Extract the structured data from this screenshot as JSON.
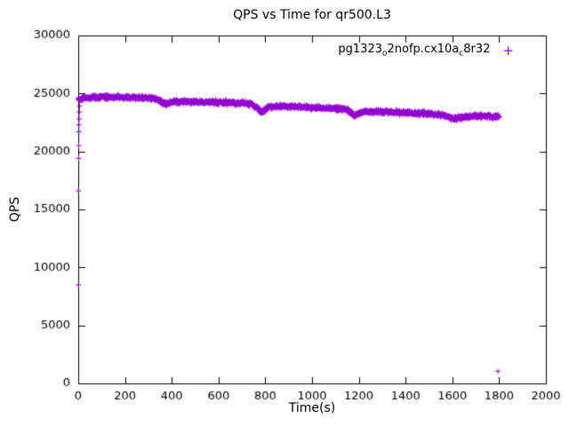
{
  "chart_data": {
    "type": "scatter",
    "title": "QPS vs Time for qr500.L3",
    "xlabel": "Time(s)",
    "ylabel": "QPS",
    "xlim": [
      0,
      2000
    ],
    "ylim": [
      0,
      30000
    ],
    "xticks": [
      0,
      200,
      400,
      600,
      800,
      1000,
      1200,
      1400,
      1600,
      1800,
      2000
    ],
    "yticks": [
      0,
      5000,
      10000,
      15000,
      20000,
      25000,
      30000
    ],
    "grid": false,
    "legend_position": "top-right-inside",
    "axis_color": "#000000",
    "series": [
      {
        "name": "pg1323_o2nofp.cx10a_c8r32",
        "label_parts": [
          {
            "text": "pg1323",
            "sub": false
          },
          {
            "text": "o",
            "sub": true
          },
          {
            "text": "2nofp.cx10a",
            "sub": false
          },
          {
            "text": "c",
            "sub": true
          },
          {
            "text": "8r32",
            "sub": false
          }
        ],
        "marker": "plus",
        "marker_glyph": "+",
        "color": "#9400D3",
        "band_noise": 180,
        "band_step": 1,
        "band_anchors": [
          [
            0,
            24500
          ],
          [
            20,
            24600
          ],
          [
            60,
            24650
          ],
          [
            120,
            24700
          ],
          [
            180,
            24650
          ],
          [
            240,
            24650
          ],
          [
            300,
            24600
          ],
          [
            340,
            24500
          ],
          [
            360,
            24150
          ],
          [
            375,
            24100
          ],
          [
            395,
            24250
          ],
          [
            420,
            24300
          ],
          [
            480,
            24300
          ],
          [
            540,
            24250
          ],
          [
            600,
            24250
          ],
          [
            660,
            24200
          ],
          [
            700,
            24150
          ],
          [
            740,
            24100
          ],
          [
            765,
            23800
          ],
          [
            780,
            23400
          ],
          [
            795,
            23500
          ],
          [
            815,
            23850
          ],
          [
            860,
            23900
          ],
          [
            920,
            23850
          ],
          [
            980,
            23800
          ],
          [
            1040,
            23750
          ],
          [
            1100,
            23700
          ],
          [
            1150,
            23650
          ],
          [
            1165,
            23350
          ],
          [
            1180,
            23050
          ],
          [
            1195,
            23200
          ],
          [
            1215,
            23400
          ],
          [
            1260,
            23450
          ],
          [
            1320,
            23400
          ],
          [
            1380,
            23350
          ],
          [
            1440,
            23300
          ],
          [
            1500,
            23250
          ],
          [
            1560,
            23150
          ],
          [
            1590,
            22900
          ],
          [
            1605,
            22750
          ],
          [
            1625,
            22900
          ],
          [
            1660,
            23000
          ],
          [
            1720,
            23050
          ],
          [
            1800,
            23000
          ]
        ],
        "startup_points": [
          [
            1,
            8500
          ],
          [
            1,
            16600
          ],
          [
            2,
            19400
          ],
          [
            2,
            20500
          ],
          [
            3,
            21700
          ],
          [
            3,
            22300
          ],
          [
            4,
            22800
          ],
          [
            5,
            23400
          ],
          [
            6,
            23900
          ]
        ],
        "outlier_points": [
          [
            1795,
            1050
          ]
        ]
      }
    ]
  }
}
